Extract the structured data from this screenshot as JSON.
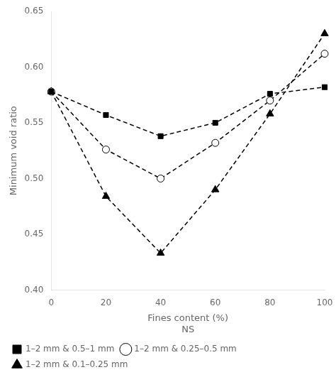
{
  "chart_data": {
    "type": "line",
    "x": [
      0,
      20,
      40,
      60,
      80,
      100
    ],
    "series": [
      {
        "name": "1–2 mm & 0.5–1 mm",
        "color": "black",
        "marker": "square",
        "line_style": "dashed",
        "values": [
          0.578,
          0.557,
          0.538,
          0.55,
          0.576,
          0.582
        ]
      },
      {
        "name": "1–2 mm & 0.25–0.5 mm",
        "color": "black",
        "marker": "open_circle",
        "line_style": "dashed",
        "values": [
          0.578,
          0.526,
          0.5,
          0.532,
          0.57,
          0.612
        ]
      },
      {
        "name": "1–2 mm & 0.1–0.25 mm",
        "color": "black",
        "marker": "triangle",
        "line_style": "dashed",
        "values": [
          0.578,
          0.484,
          0.433,
          0.49,
          0.558,
          0.63
        ]
      }
    ],
    "xlabel": "Fines content (%)",
    "annotations": [
      "NS"
    ],
    "ylabel": "Minimum void ratio",
    "xlim": [
      0,
      100
    ],
    "ylim": [
      0.4,
      0.65
    ],
    "xticks": [
      0,
      20,
      40,
      60,
      80,
      100
    ],
    "yticks": [
      {
        "value": 0.4,
        "label": "0.40"
      },
      0.45,
      {
        "value": 0.5,
        "label": "0.50"
      },
      0.55,
      {
        "value": 0.6,
        "label": "0.60"
      },
      0.65
    ],
    "grid": false,
    "legend": "lower left"
  }
}
